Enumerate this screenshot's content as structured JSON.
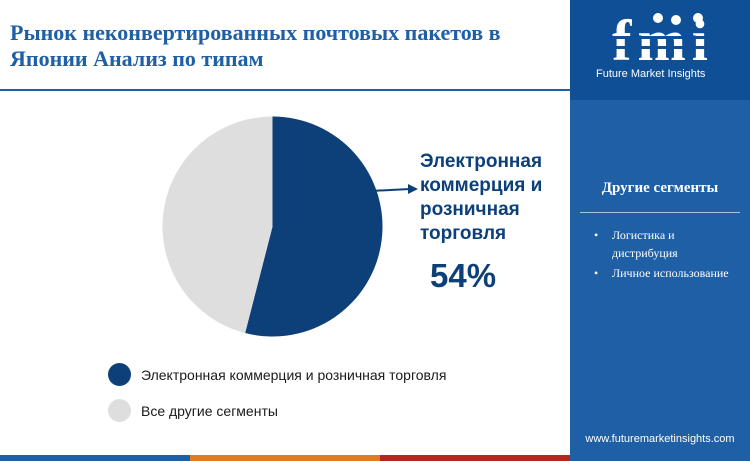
{
  "title": "Рынок неконвертированных почтовых пакетов в Японии Анализ по типам",
  "callout": {
    "label": "Электронная коммерция и розничная торговля",
    "percent": "54%"
  },
  "chart_data": {
    "type": "pie",
    "title": "Рынок неконвертированных почтовых пакетов в Японии Анализ по типам",
    "categories": [
      "Электронная коммерция и розничная торговля",
      "Все другие сегменты"
    ],
    "values": [
      54,
      46
    ],
    "colors": [
      "#0d3f78",
      "#dedede"
    ],
    "legend_position": "bottom"
  },
  "legend": [
    {
      "label": "Электронная коммерция и розничная торговля",
      "color": "#0d3f78"
    },
    {
      "label": "Все другие сегменты",
      "color": "#dedede"
    }
  ],
  "sidebar": {
    "logo_text": "fmi",
    "logo_subtitle": "Future Market Insights",
    "segments_title": "Другие сегменты",
    "segments": [
      "Логистика и дистрибуция",
      "Личное использование"
    ],
    "url": "www.futuremarketinsights.com"
  },
  "colors": {
    "brand_blue": "#1f5fa6",
    "dark_blue": "#0d3f78",
    "light_gray": "#dedede",
    "bar_segments": [
      "#1f5fa6",
      "#e07b22",
      "#b5261e",
      "#1f5fa6"
    ]
  }
}
